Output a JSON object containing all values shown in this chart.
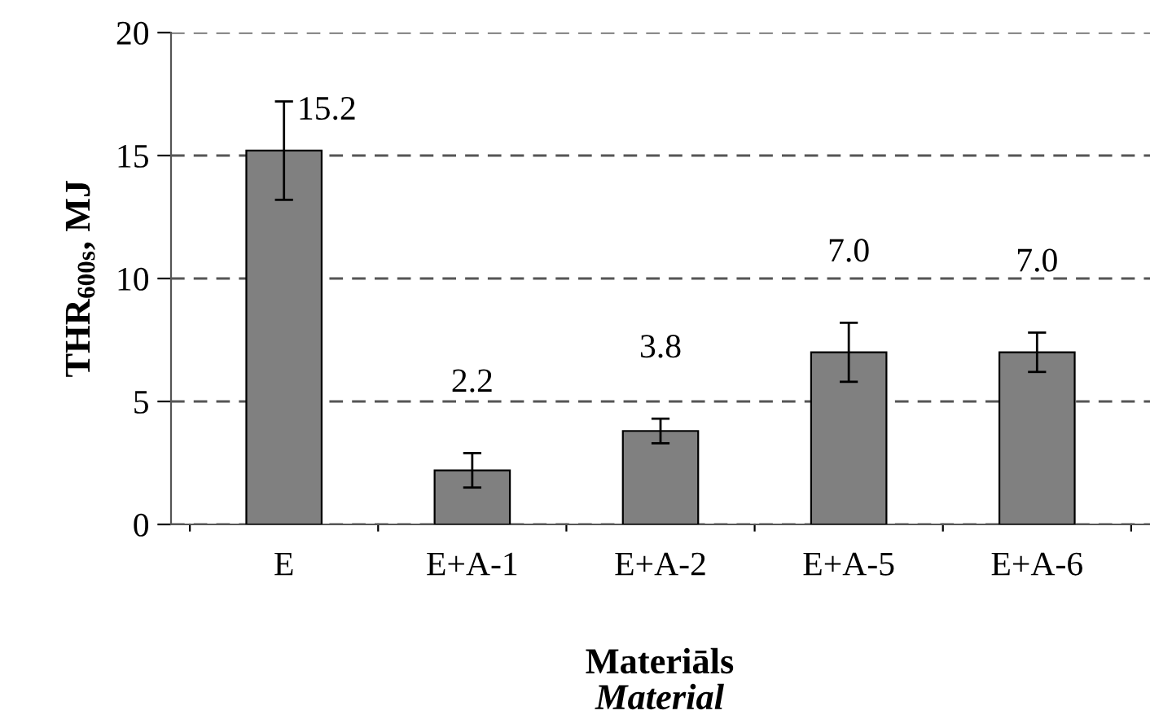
{
  "chart_data": {
    "type": "bar",
    "categories": [
      "E",
      "E+A-1",
      "E+A-2",
      "E+A-5",
      "E+A-6"
    ],
    "values": [
      15.2,
      2.2,
      3.8,
      7.0,
      7.0
    ],
    "errors": [
      2.0,
      0.7,
      0.5,
      1.2,
      0.8
    ],
    "value_labels": [
      "15.2",
      "2.2",
      "3.8",
      "7.0",
      "7.0"
    ],
    "color": "#808080",
    "xlabel": "Materiāls\nMaterial",
    "ylabel": "THR$_{600s}$, MJ",
    "ylim": [
      0,
      20
    ],
    "yticks": [
      0,
      5,
      10,
      15,
      20
    ],
    "grid": "y",
    "legend": false
  }
}
